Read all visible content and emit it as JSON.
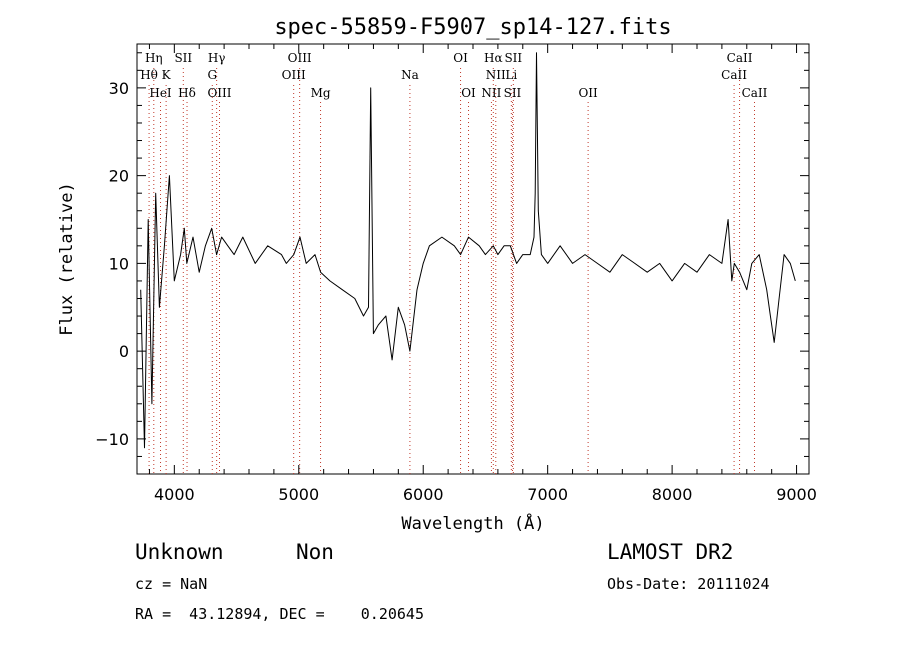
{
  "chart_data": {
    "type": "line",
    "title": "spec-55859-F5907_sp14-127.fits",
    "xlabel": "Wavelength (Å)",
    "ylabel": "Flux (relative)",
    "xlim": [
      3700,
      9100
    ],
    "ylim": [
      -14,
      35
    ],
    "xticks": [
      4000,
      5000,
      6000,
      7000,
      8000,
      9000
    ],
    "yticks": [
      -10,
      0,
      10,
      20,
      30
    ],
    "grid": false,
    "line_color": "#000000",
    "marker_color": "#c0392b",
    "series": [
      {
        "x": [
          3730,
          3760,
          3790,
          3820,
          3850,
          3880,
          3920,
          3960,
          4000,
          4050,
          4080,
          4100,
          4150,
          4200,
          4250,
          4300,
          4340,
          4380,
          4430,
          4480,
          4550,
          4650,
          4750,
          4861,
          4900,
          4960,
          5010,
          5060,
          5130,
          5175,
          5250,
          5350,
          5450,
          5520,
          5560,
          5578,
          5600,
          5640,
          5700,
          5750,
          5800,
          5850,
          5893,
          5950,
          6000,
          6050,
          6150,
          6250,
          6300,
          6364,
          6450,
          6500,
          6563,
          6600,
          6650,
          6700,
          6750,
          6800,
          6860,
          6890,
          6900,
          6910,
          6925,
          6950,
          7000,
          7100,
          7200,
          7300,
          7400,
          7500,
          7600,
          7700,
          7800,
          7900,
          8000,
          8100,
          8200,
          8300,
          8400,
          8450,
          8480,
          8500,
          8542,
          8600,
          8640,
          8700,
          8760,
          8790,
          8820,
          8860,
          8900,
          8950,
          8990
        ],
        "y": [
          7,
          -11,
          15,
          -6,
          18,
          5,
          12,
          20,
          8,
          11,
          14,
          10,
          13,
          9,
          12,
          14,
          11,
          13,
          12,
          11,
          13,
          10,
          12,
          11,
          10,
          11,
          13,
          10,
          11,
          9,
          8,
          7,
          6,
          4,
          5,
          30,
          2,
          3,
          4,
          -1,
          5,
          3,
          0,
          7,
          10,
          12,
          13,
          12,
          11,
          13,
          12,
          11,
          12,
          11,
          12,
          12,
          10,
          11,
          11,
          13,
          18,
          34,
          16,
          11,
          10,
          12,
          10,
          11,
          10,
          9,
          11,
          10,
          9,
          10,
          8,
          10,
          9,
          11,
          10,
          15,
          8,
          10,
          9,
          7,
          10,
          11,
          7,
          4,
          1,
          6,
          11,
          10,
          8
        ]
      }
    ],
    "line_markers": [
      {
        "label": "Hη",
        "x": 3835,
        "row": 1
      },
      {
        "label": "Hθ",
        "x": 3797,
        "row": 2
      },
      {
        "label": "HeI",
        "x": 3889,
        "row": 3
      },
      {
        "label": "K",
        "x": 3934,
        "row": 2
      },
      {
        "label": "SII",
        "x": 4072,
        "row": 1
      },
      {
        "label": "Hδ",
        "x": 4102,
        "row": 3
      },
      {
        "label": "Hγ",
        "x": 4340,
        "row": 1
      },
      {
        "label": "G",
        "x": 4305,
        "row": 2
      },
      {
        "label": "OIII",
        "x": 4363,
        "row": 3
      },
      {
        "label": "OIII",
        "x": 5007,
        "row": 1
      },
      {
        "label": "OIII",
        "x": 4959,
        "row": 2
      },
      {
        "label": "Mg",
        "x": 5175,
        "row": 3
      },
      {
        "label": "Na",
        "x": 5893,
        "row": 2
      },
      {
        "label": "OI",
        "x": 6300,
        "row": 1
      },
      {
        "label": "OI",
        "x": 6364,
        "row": 3
      },
      {
        "label": "Hα",
        "x": 6563,
        "row": 1
      },
      {
        "label": "SII",
        "x": 6724,
        "row": 1
      },
      {
        "label": "NII",
        "x": 6583,
        "row": 2
      },
      {
        "label": "Li",
        "x": 6708,
        "row": 2
      },
      {
        "label": "NII",
        "x": 6548,
        "row": 3
      },
      {
        "label": "SII",
        "x": 6717,
        "row": 3
      },
      {
        "label": "OII",
        "x": 7325,
        "row": 3
      },
      {
        "label": "CaII",
        "x": 8542,
        "row": 1
      },
      {
        "label": "CaII",
        "x": 8498,
        "row": 2
      },
      {
        "label": "CaII",
        "x": 8662,
        "row": 3
      }
    ]
  },
  "footer": {
    "class_label": "Unknown",
    "subclass_label": "Non",
    "survey": "LAMOST DR2",
    "cz": "cz = NaN",
    "obs_date": "Obs-Date: 20111024",
    "coords": "RA =  43.12894, DEC =    0.20645"
  }
}
